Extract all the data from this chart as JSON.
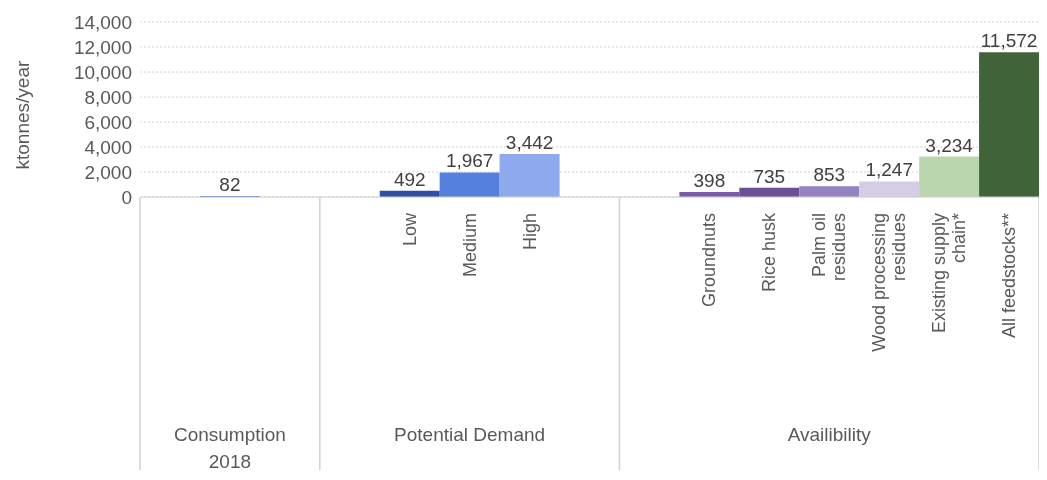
{
  "chart_data": {
    "type": "bar",
    "ylabel": "ktonnes/year",
    "categories": [
      null,
      null,
      null,
      null,
      "Low",
      "Medium",
      "High",
      null,
      null,
      "Groundnuts",
      "Rice husk",
      "Palm oil residues",
      "Wood processing residues",
      "Existing supply chain*",
      "All feedstocks**"
    ],
    "values": [
      null,
      82,
      null,
      null,
      492,
      1967,
      3442,
      null,
      null,
      398,
      735,
      853,
      1247,
      3234,
      11572
    ],
    "value_labels": [
      null,
      "82",
      null,
      null,
      "492",
      "1,967",
      "3,442",
      null,
      null,
      "398",
      "735",
      "853",
      "1,247",
      "3,234",
      "11,572"
    ],
    "colors": [
      null,
      "#4472c4",
      null,
      null,
      "#2f4ea8",
      "#5580dc",
      "#8eaaec",
      null,
      null,
      "#7b5ba8",
      "#6a4f96",
      "#9682c0",
      "#d6cce6",
      "#b9d6ae",
      "#40633a"
    ],
    "ylim": [
      0,
      14000
    ],
    "yticks": [
      {
        "value": 0,
        "label": "0"
      },
      {
        "value": 2000,
        "label": "2,000"
      },
      {
        "value": 4000,
        "label": "4,000"
      },
      {
        "value": 6000,
        "label": "6,000"
      },
      {
        "value": 8000,
        "label": "8,000"
      },
      {
        "value": 10000,
        "label": "10,000"
      },
      {
        "value": 12000,
        "label": "12,000"
      },
      {
        "value": 14000,
        "label": "14,000"
      }
    ],
    "grid": "y",
    "annotations": [
      "Consumption 2018",
      "Potential Demand",
      "Availibility"
    ]
  }
}
